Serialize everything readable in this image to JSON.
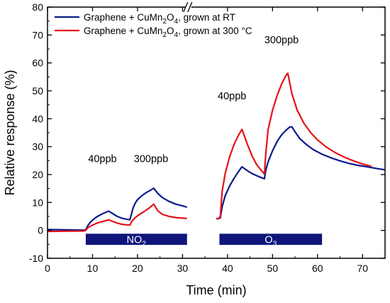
{
  "chart_data": {
    "type": "line",
    "xlabel": "Time (min)",
    "ylabel": "Relative response (%)",
    "xlim": [
      0,
      75
    ],
    "ylim": [
      -10,
      80
    ],
    "xticks": [
      0,
      10,
      20,
      30,
      40,
      50,
      60,
      70
    ],
    "yticks": [
      -10,
      0,
      10,
      20,
      30,
      40,
      50,
      60,
      70,
      80
    ],
    "axis_break": {
      "x": 31
    },
    "grid": false,
    "legend_position": "top-left",
    "legend": [
      {
        "prefix": "Graphene + CuMn",
        "sub1": "2",
        "mid": "O",
        "sub2": "4",
        "suffix": ", grown at RT",
        "color": "#0a1a8c"
      },
      {
        "prefix": "Graphene + CuMn",
        "sub1": "2",
        "mid": "O",
        "sub2": "4",
        "suffix": ", grown at 300 °C",
        "color": "#e8101a"
      }
    ],
    "series": [
      {
        "color": "#0a1a8c",
        "points": [
          [
            0,
            0.3
          ],
          [
            4,
            0.2
          ],
          [
            8,
            0.1
          ],
          [
            8.5,
            0.2
          ],
          [
            9,
            1.8
          ],
          [
            9.5,
            2.9
          ],
          [
            10,
            3.7
          ],
          [
            11,
            4.9
          ],
          [
            12,
            5.8
          ],
          [
            13,
            6.5
          ],
          [
            13.6,
            6.9
          ],
          [
            14.5,
            6.0
          ],
          [
            15.5,
            5.0
          ],
          [
            16.5,
            4.4
          ],
          [
            17.5,
            4.0
          ],
          [
            18.3,
            3.8
          ],
          [
            18.6,
            5.5
          ],
          [
            19,
            8.0
          ],
          [
            19.5,
            9.8
          ],
          [
            20,
            11.0
          ],
          [
            21,
            12.5
          ],
          [
            22,
            13.6
          ],
          [
            23,
            14.5
          ],
          [
            23.6,
            15.1
          ],
          [
            24.5,
            13.3
          ],
          [
            25.5,
            11.8
          ],
          [
            27,
            10.4
          ],
          [
            28.5,
            9.4
          ],
          [
            30,
            8.8
          ],
          [
            31,
            8.3
          ],
          [
            37.5,
            4.3
          ],
          [
            38,
            4.2
          ],
          [
            38.4,
            4.5
          ],
          [
            38.8,
            8.5
          ],
          [
            39.5,
            12.5
          ],
          [
            40.5,
            16.0
          ],
          [
            41.5,
            18.8
          ],
          [
            42.5,
            21.2
          ],
          [
            43.2,
            22.8
          ],
          [
            44.5,
            21.3
          ],
          [
            45.5,
            20.3
          ],
          [
            46.5,
            19.6
          ],
          [
            47.5,
            18.9
          ],
          [
            48.2,
            18.5
          ],
          [
            48.5,
            21.5
          ],
          [
            49,
            24.5
          ],
          [
            50,
            28.5
          ],
          [
            51,
            31.8
          ],
          [
            52,
            34.2
          ],
          [
            53,
            35.9
          ],
          [
            53.8,
            37.0
          ],
          [
            54.3,
            37.1
          ],
          [
            55,
            35.3
          ],
          [
            56,
            33.0
          ],
          [
            57.5,
            30.8
          ],
          [
            59,
            29.0
          ],
          [
            61,
            27.3
          ],
          [
            63,
            26.0
          ],
          [
            65,
            24.9
          ],
          [
            67,
            24.0
          ],
          [
            69,
            23.3
          ],
          [
            71,
            22.8
          ],
          [
            73,
            22.2
          ],
          [
            75,
            21.7
          ]
        ]
      },
      {
        "color": "#e8101a",
        "points": [
          [
            0,
            -0.4
          ],
          [
            4,
            -0.3
          ],
          [
            8,
            -0.2
          ],
          [
            8.5,
            0.0
          ],
          [
            9,
            1.0
          ],
          [
            10,
            1.9
          ],
          [
            11,
            2.6
          ],
          [
            12,
            3.1
          ],
          [
            13,
            3.5
          ],
          [
            13.6,
            3.8
          ],
          [
            14.5,
            3.2
          ],
          [
            15.5,
            2.6
          ],
          [
            16.5,
            2.2
          ],
          [
            17.5,
            2.0
          ],
          [
            18.3,
            1.9
          ],
          [
            18.7,
            3.2
          ],
          [
            19.5,
            4.6
          ],
          [
            20.5,
            5.8
          ],
          [
            21.5,
            6.8
          ],
          [
            22.5,
            7.9
          ],
          [
            23.3,
            9.0
          ],
          [
            23.6,
            9.4
          ],
          [
            24.5,
            7.0
          ],
          [
            25.5,
            5.8
          ],
          [
            27,
            5.0
          ],
          [
            28.5,
            4.6
          ],
          [
            30,
            4.4
          ],
          [
            31,
            4.3
          ],
          [
            37.5,
            4.2
          ],
          [
            38,
            4.2
          ],
          [
            38.4,
            5.0
          ],
          [
            38.8,
            14.0
          ],
          [
            39.5,
            20.5
          ],
          [
            40.5,
            26.5
          ],
          [
            41.5,
            31.0
          ],
          [
            42.5,
            34.3
          ],
          [
            43.2,
            36.2
          ],
          [
            44.5,
            30.5
          ],
          [
            45.5,
            26.5
          ],
          [
            46.5,
            23.5
          ],
          [
            47.5,
            21.5
          ],
          [
            48.2,
            20.2
          ],
          [
            48.5,
            27.5
          ],
          [
            49,
            36.0
          ],
          [
            50,
            43.0
          ],
          [
            51,
            48.2
          ],
          [
            52,
            52.4
          ],
          [
            53,
            55.6
          ],
          [
            53.4,
            56.3
          ],
          [
            54.3,
            49.0
          ],
          [
            55.5,
            43.0
          ],
          [
            57,
            38.3
          ],
          [
            58.5,
            35.0
          ],
          [
            60,
            32.4
          ],
          [
            62,
            29.8
          ],
          [
            64,
            27.8
          ],
          [
            66,
            26.2
          ],
          [
            68,
            24.9
          ],
          [
            70,
            23.8
          ],
          [
            72,
            22.9
          ]
        ]
      }
    ],
    "annotations": [
      {
        "text": "40ppb",
        "x": 12.2,
        "y": 24.5
      },
      {
        "text": "300ppb",
        "x": 23.0,
        "y": 24.5
      },
      {
        "text": "40ppb",
        "x": 41.0,
        "y": 47.0
      },
      {
        "text": "300ppb",
        "x": 52.0,
        "y": 67.0
      }
    ],
    "exposure_bars": [
      {
        "label": "NO",
        "sub": "2",
        "x_start": 8.5,
        "x_end": 31.0,
        "y_top": -1.2,
        "y_bottom": -5.2
      },
      {
        "label": "O",
        "sub": "3",
        "x_start": 38.2,
        "x_end": 61.0,
        "y_top": -1.2,
        "y_bottom": -5.2
      }
    ],
    "bar_color": "#0f157a"
  }
}
